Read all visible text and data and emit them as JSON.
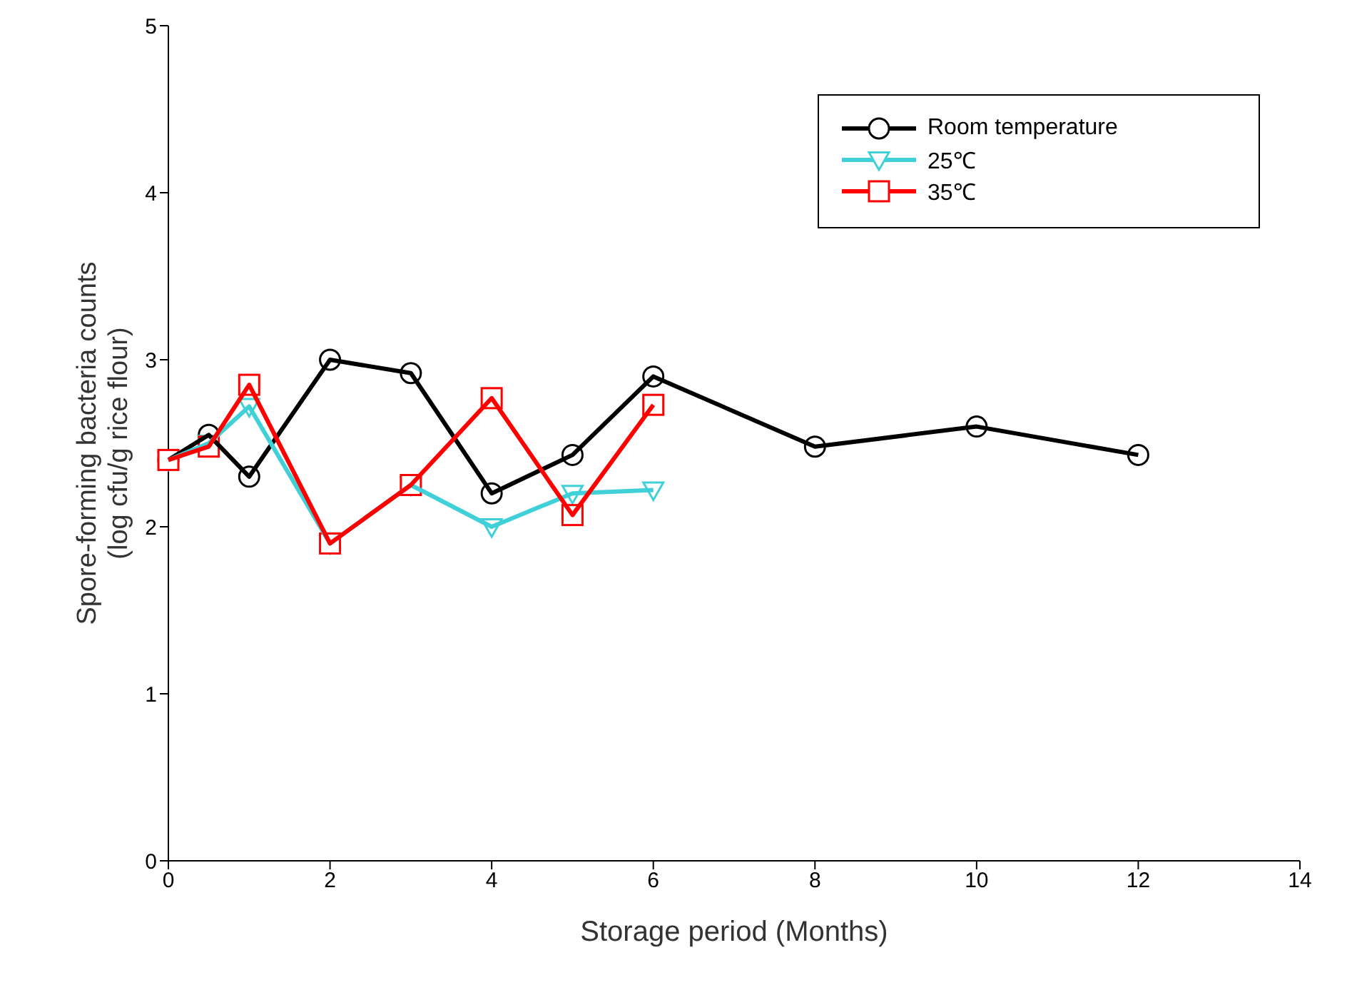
{
  "chart_data": {
    "type": "line",
    "xlabel": "Storage period (Months)",
    "ylabel": "Spore-forming bacteria counts\n(log cfu/g rice flour)",
    "x": [
      0,
      0.5,
      1,
      2,
      3,
      4,
      5,
      6,
      8,
      10,
      12
    ],
    "series": [
      {
        "name": "Room temperature",
        "color": "#000000",
        "marker": "circle",
        "values": [
          2.4,
          2.55,
          2.3,
          3.0,
          2.92,
          2.2,
          2.43,
          2.9,
          2.48,
          2.6,
          2.43
        ]
      },
      {
        "name": "25℃",
        "color": "#40d0d8",
        "marker": "triangle",
        "values": [
          2.4,
          2.5,
          2.72,
          1.9,
          2.25,
          2.0,
          2.2,
          2.22,
          null,
          null,
          null
        ]
      },
      {
        "name": "35℃",
        "color": "#ff0000",
        "marker": "square",
        "values": [
          2.4,
          2.48,
          2.85,
          1.9,
          2.25,
          2.77,
          2.07,
          2.73,
          null,
          null,
          null
        ]
      }
    ],
    "xlim": [
      0,
      14
    ],
    "xticks": [
      0,
      2,
      4,
      6,
      8,
      10,
      12,
      14
    ],
    "ylim": [
      0,
      5
    ],
    "yticks": [
      0,
      1,
      2,
      3,
      4,
      5
    ],
    "grid": false,
    "legend": "top right",
    "line_style": "solid"
  }
}
